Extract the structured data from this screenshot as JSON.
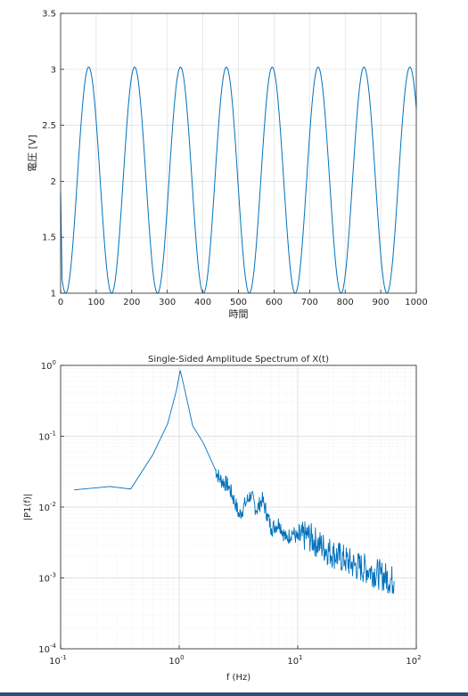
{
  "chart_data": [
    {
      "type": "line",
      "title": "",
      "xlabel": "時間",
      "ylabel": "電圧 [V]",
      "xlim": [
        0,
        1000
      ],
      "ylim": [
        1,
        3.5
      ],
      "xticks": [
        "0",
        "100",
        "200",
        "300",
        "400",
        "500",
        "600",
        "700",
        "800",
        "900",
        "1000"
      ],
      "yticks": [
        "1",
        "1.5",
        "2",
        "2.5",
        "3",
        "3.5"
      ],
      "grid": true,
      "series_color": "#0072bd",
      "signal": {
        "min": 1.0,
        "max": 3.02,
        "period": 129,
        "start_value": 1.9,
        "first_peak_x": 79
      },
      "x": [
        0,
        13,
        79,
        144,
        208,
        273,
        337,
        402,
        466,
        531,
        595,
        660,
        724,
        789,
        853,
        918,
        982,
        1000
      ],
      "y": [
        1.9,
        1.0,
        3.02,
        1.0,
        3.02,
        1.0,
        3.02,
        1.0,
        3.02,
        1.0,
        3.02,
        1.0,
        3.02,
        1.0,
        3.02,
        1.0,
        3.02,
        2.95
      ]
    },
    {
      "type": "line",
      "scale": "log-log",
      "title": "Single-Sided Amplitude Spectrum of X(t)",
      "xlabel": "f (Hz)",
      "ylabel": "|P1(f)|",
      "xlim": [
        0.1,
        100
      ],
      "ylim": [
        0.0001,
        1
      ],
      "xticks": [
        {
          "base": "10",
          "exp": "-1"
        },
        {
          "base": "10",
          "exp": "0"
        },
        {
          "base": "10",
          "exp": "1"
        },
        {
          "base": "10",
          "exp": "2"
        }
      ],
      "yticks": [
        {
          "base": "10",
          "exp": "-4"
        },
        {
          "base": "10",
          "exp": "-3"
        },
        {
          "base": "10",
          "exp": "-2"
        },
        {
          "base": "10",
          "exp": "-1"
        },
        {
          "base": "10",
          "exp": "0"
        }
      ],
      "grid": true,
      "minor_grid": true,
      "series_color": "#0072bd",
      "x": [
        0.13,
        0.26,
        0.39,
        0.6,
        0.8,
        0.95,
        1.02,
        1.1,
        1.3,
        1.6,
        2.0,
        2.2,
        2.6,
        3.0,
        3.2,
        3.6,
        4.0,
        4.5,
        5.0,
        5.5,
        6.0,
        7.0,
        8.0,
        9.0,
        10.0,
        12.0,
        15.0,
        20.0,
        25.0,
        30.0,
        40.0,
        50.0,
        65.0
      ],
      "y": [
        0.0175,
        0.0195,
        0.018,
        0.055,
        0.15,
        0.45,
        0.85,
        0.5,
        0.14,
        0.08,
        0.035,
        0.025,
        0.02,
        0.011,
        0.0075,
        0.011,
        0.015,
        0.009,
        0.013,
        0.008,
        0.005,
        0.006,
        0.0035,
        0.0045,
        0.0035,
        0.004,
        0.003,
        0.0022,
        0.0018,
        0.0015,
        0.0013,
        0.0011,
        0.0009
      ]
    }
  ]
}
